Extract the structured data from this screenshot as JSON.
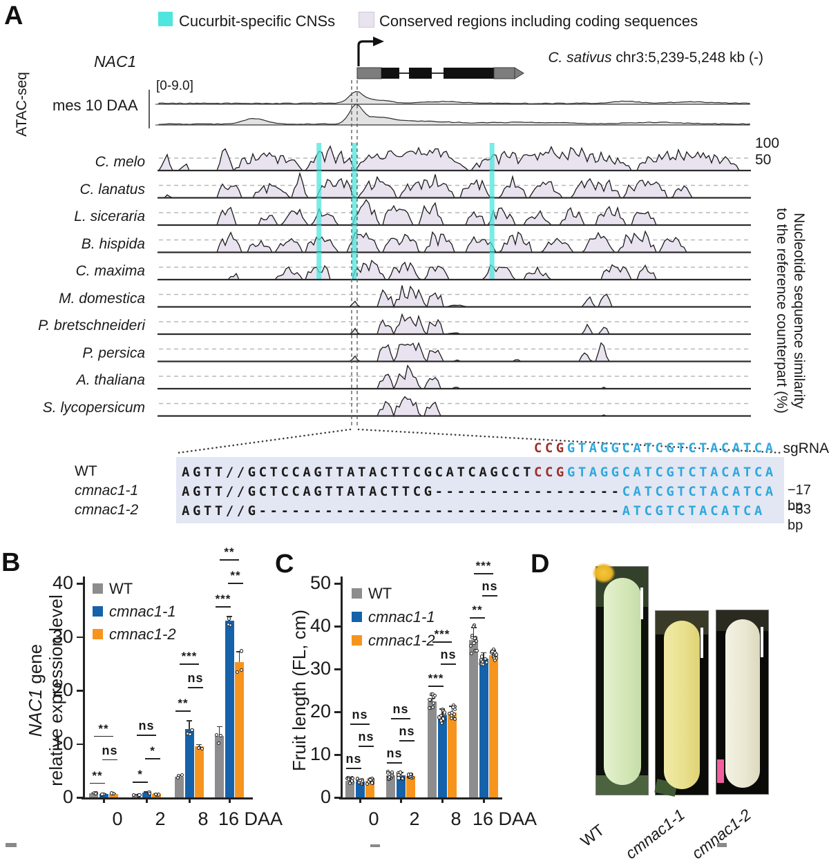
{
  "figure": {
    "panel_labels": {
      "a": "A",
      "b": "B",
      "c": "C",
      "d": "D"
    },
    "colors": {
      "cns_cyan": "#4ee6de",
      "conserved_lavender": "#e9e2ef",
      "align_bg": "#e3e7f3",
      "pam_red": "#9e2f2a",
      "guide_blue": "#2fa8dd",
      "bar_gray": "#8d8d8f",
      "bar_blue": "#1562aa",
      "bar_orange": "#f7941e"
    }
  },
  "panel_a": {
    "legend": [
      {
        "label": "Cucurbit-specific CNSs",
        "color": "#4ee6de"
      },
      {
        "label": "Conserved regions including coding sequences",
        "color": "#e9e2ef"
      }
    ],
    "gene_name": "NAC1",
    "locus_italic": "C. sativus",
    "locus_rest": " chr3:5,239-5,248 kb (-)",
    "atac_label": "ATAC-seq",
    "atac_sample": "mes 10 DAA",
    "atac_scale": "[0-9.0]",
    "similarity_ticks": [
      "100",
      "50"
    ],
    "similarity_axis_lines": [
      "Nucleotide sequence similarity",
      "to the reference counterpart (%)"
    ],
    "cns_positions": [
      0.271,
      0.331,
      0.564
    ],
    "tracks": [
      {
        "species": "C. melo",
        "cucurbit": true,
        "segments": [
          [
            0,
            0.02,
            0.65
          ],
          [
            0.035,
            0.05,
            0.3
          ],
          [
            0.1,
            0.125,
            0.85
          ],
          [
            0.13,
            0.24,
            0.8
          ],
          [
            0.25,
            0.33,
            0.9
          ],
          [
            0.335,
            0.52,
            0.97
          ],
          [
            0.53,
            0.8,
            0.93
          ],
          [
            0.81,
            0.98,
            0.85
          ]
        ]
      },
      {
        "species": "C. lanatus",
        "cucurbit": true,
        "segments": [
          [
            0.01,
            0.02,
            0.15
          ],
          [
            0.1,
            0.14,
            0.75
          ],
          [
            0.16,
            0.22,
            0.6
          ],
          [
            0.225,
            0.25,
            0.9
          ],
          [
            0.27,
            0.33,
            0.85
          ],
          [
            0.34,
            0.4,
            0.85
          ],
          [
            0.41,
            0.5,
            0.9
          ],
          [
            0.51,
            0.56,
            0.8
          ],
          [
            0.58,
            0.62,
            0.85
          ],
          [
            0.63,
            0.68,
            0.7
          ],
          [
            0.7,
            0.78,
            0.8
          ],
          [
            0.79,
            0.86,
            0.9
          ],
          [
            0.87,
            0.9,
            0.5
          ]
        ]
      },
      {
        "species": "L. siceraria",
        "cucurbit": true,
        "segments": [
          [
            0.1,
            0.13,
            0.75
          ],
          [
            0.17,
            0.2,
            0.5
          ],
          [
            0.21,
            0.25,
            0.7
          ],
          [
            0.26,
            0.3,
            0.65
          ],
          [
            0.33,
            0.37,
            0.95
          ],
          [
            0.38,
            0.43,
            0.85
          ],
          [
            0.44,
            0.48,
            0.9
          ],
          [
            0.52,
            0.55,
            0.6
          ],
          [
            0.56,
            0.6,
            0.75
          ],
          [
            0.62,
            0.66,
            0.6
          ],
          [
            0.68,
            0.72,
            0.65
          ],
          [
            0.74,
            0.79,
            0.7
          ],
          [
            0.8,
            0.84,
            0.6
          ]
        ]
      },
      {
        "species": "B. hispida",
        "cucurbit": true,
        "segments": [
          [
            0.1,
            0.14,
            0.7
          ],
          [
            0.15,
            0.19,
            0.45
          ],
          [
            0.2,
            0.24,
            0.65
          ],
          [
            0.25,
            0.3,
            0.75
          ],
          [
            0.32,
            0.37,
            0.9
          ],
          [
            0.38,
            0.44,
            0.8
          ],
          [
            0.45,
            0.5,
            0.85
          ],
          [
            0.52,
            0.57,
            0.75
          ],
          [
            0.58,
            0.63,
            0.8
          ],
          [
            0.65,
            0.7,
            0.6
          ],
          [
            0.72,
            0.77,
            0.75
          ],
          [
            0.78,
            0.84,
            0.85
          ],
          [
            0.85,
            0.89,
            0.7
          ]
        ]
      },
      {
        "species": "C. maxima",
        "cucurbit": true,
        "segments": [
          [
            0.12,
            0.135,
            0.3
          ],
          [
            0.2,
            0.24,
            0.5
          ],
          [
            0.25,
            0.29,
            0.65
          ],
          [
            0.33,
            0.38,
            0.9
          ],
          [
            0.39,
            0.44,
            0.8
          ],
          [
            0.45,
            0.49,
            0.75
          ],
          [
            0.55,
            0.6,
            0.7
          ],
          [
            0.62,
            0.66,
            0.5
          ],
          [
            0.75,
            0.8,
            0.8
          ],
          [
            0.81,
            0.84,
            0.6
          ]
        ]
      },
      {
        "species": "M. domestica",
        "cucurbit": false,
        "segments": [
          [
            0.327,
            0.337,
            0.3
          ],
          [
            0.372,
            0.395,
            0.72
          ],
          [
            0.4,
            0.45,
            0.92
          ],
          [
            0.455,
            0.48,
            0.68
          ],
          [
            0.49,
            0.52,
            0.1
          ],
          [
            0.72,
            0.735,
            0.55
          ],
          [
            0.745,
            0.765,
            0.68
          ]
        ]
      },
      {
        "species": "P. bretschneideri",
        "cucurbit": false,
        "segments": [
          [
            0.327,
            0.337,
            0.28
          ],
          [
            0.372,
            0.395,
            0.7
          ],
          [
            0.4,
            0.45,
            0.9
          ],
          [
            0.455,
            0.48,
            0.66
          ],
          [
            0.49,
            0.51,
            0.08
          ],
          [
            0.72,
            0.732,
            0.5
          ],
          [
            0.748,
            0.762,
            0.35
          ]
        ]
      },
      {
        "species": "P. persica",
        "cucurbit": false,
        "segments": [
          [
            0.327,
            0.337,
            0.3
          ],
          [
            0.372,
            0.395,
            0.72
          ],
          [
            0.4,
            0.45,
            0.92
          ],
          [
            0.455,
            0.48,
            0.7
          ],
          [
            0.5,
            0.51,
            0.08
          ],
          [
            0.6,
            0.61,
            0.1
          ],
          [
            0.715,
            0.73,
            0.55
          ],
          [
            0.74,
            0.76,
            0.72
          ]
        ]
      },
      {
        "species": "A. thaliana",
        "cucurbit": false,
        "segments": [
          [
            0.372,
            0.395,
            0.75
          ],
          [
            0.4,
            0.44,
            0.85
          ],
          [
            0.45,
            0.475,
            0.5
          ],
          [
            0.5,
            0.507,
            0.1
          ],
          [
            0.75,
            0.757,
            0.12
          ]
        ]
      },
      {
        "species": "S. lycopersicum",
        "cucurbit": false,
        "segments": [
          [
            0.372,
            0.395,
            0.7
          ],
          [
            0.4,
            0.44,
            0.85
          ],
          [
            0.45,
            0.475,
            0.65
          ],
          [
            0.75,
            0.756,
            0.1
          ]
        ]
      }
    ],
    "alignment": {
      "sgrna": {
        "pam": "CCG",
        "guide": "GTAGGCATCGTCTACATCA",
        "label": "sgRNA"
      },
      "rows": [
        {
          "name": "WT",
          "italic": false,
          "note": "",
          "segments": [
            {
              "t": "AGTT//GCTCCAGTTATACTTCGCATCAGCCT",
              "c": "base"
            },
            {
              "t": "CCG",
              "c": "pam"
            },
            {
              "t": "GTAGGCATCGTCTACATCA",
              "c": "guide"
            }
          ]
        },
        {
          "name": "cmnac1-1",
          "italic": true,
          "note": "−17 bp",
          "segments": [
            {
              "t": "AGTT//GCTCCAGTTATACTTCG",
              "c": "base"
            },
            {
              "t": "-----------------",
              "c": "base"
            },
            {
              "t": "CATCGTCTACATCA",
              "c": "guide"
            }
          ]
        },
        {
          "name": "cmnac1-2",
          "italic": true,
          "note": "−33 bp",
          "segments": [
            {
              "t": "AGTT//G",
              "c": "base"
            },
            {
              "t": "---------------------------------",
              "c": "base"
            },
            {
              "t": "ATCGTCTACATCA",
              "c": "guide"
            }
          ]
        }
      ]
    }
  },
  "chart_data": [
    {
      "id": "nac1-expression",
      "type": "bar",
      "ylabel_lines": [
        [
          {
            "t": "NAC1",
            "i": true
          },
          {
            "t": " gene",
            "i": false
          }
        ],
        [
          {
            "t": "relative expression level",
            "i": false
          }
        ]
      ],
      "ylim": [
        0,
        40
      ],
      "yticks": [
        0,
        10,
        20,
        30,
        40
      ],
      "categories": [
        "0",
        "2",
        "8",
        "16"
      ],
      "x_suffix": "DAA",
      "legend_position": "top-left",
      "grid": false,
      "series": [
        {
          "name": "WT",
          "italic": false,
          "color": "#8d8d8f",
          "values": [
            0.8,
            0.5,
            3.9,
            11.5
          ],
          "errors": [
            0.15,
            0.1,
            0.25,
            1.8
          ]
        },
        {
          "name": "cmnac1-1",
          "italic": true,
          "color": "#1562aa",
          "values": [
            0.6,
            0.9,
            12.8,
            33.0
          ],
          "errors": [
            0.15,
            0.2,
            1.6,
            0.9
          ]
        },
        {
          "name": "cmnac1-2",
          "italic": true,
          "color": "#f7941e",
          "values": [
            0.7,
            0.6,
            9.5,
            25.3
          ],
          "errors": [
            0.12,
            0.12,
            0.5,
            2.0
          ]
        }
      ],
      "significance": [
        [
          "**",
          "ns",
          "**"
        ],
        [
          "*",
          "*",
          "ns"
        ],
        [
          "**",
          "ns",
          "***"
        ],
        [
          "***",
          "**",
          "**"
        ]
      ],
      "points_per_bar": 3
    },
    {
      "id": "fruit-length",
      "type": "bar",
      "ylabel_lines": [
        [
          {
            "t": "Fruit length (FL, cm)",
            "i": false
          }
        ]
      ],
      "ylim": [
        0,
        50
      ],
      "yticks": [
        0,
        10,
        20,
        30,
        40,
        50
      ],
      "categories": [
        "0",
        "2",
        "8",
        "16"
      ],
      "x_suffix": "DAA",
      "legend_position": "top-left",
      "grid": false,
      "series": [
        {
          "name": "WT",
          "italic": false,
          "color": "#8d8d8f",
          "values": [
            3.9,
            5.2,
            22.4,
            36.8
          ],
          "errors": [
            0.7,
            0.8,
            1.5,
            3.0
          ]
        },
        {
          "name": "cmnac1-1",
          "italic": true,
          "color": "#1562aa",
          "values": [
            3.7,
            5.1,
            19.2,
            32.4
          ],
          "errors": [
            0.6,
            0.8,
            1.6,
            1.5
          ]
        },
        {
          "name": "cmnac1-2",
          "italic": true,
          "color": "#f7941e",
          "values": [
            3.8,
            5.0,
            19.9,
            33.3
          ],
          "errors": [
            0.6,
            0.7,
            1.5,
            1.2
          ]
        }
      ],
      "significance": [
        [
          "ns",
          "ns",
          "ns"
        ],
        [
          "ns",
          "ns",
          "ns"
        ],
        [
          "***",
          "ns",
          "***"
        ],
        [
          "**",
          "ns",
          "***"
        ]
      ],
      "points_per_bar": 12
    }
  ],
  "panel_d": {
    "items": [
      {
        "label": "WT",
        "italic": false
      },
      {
        "label": "cmnac1-1",
        "italic": true
      },
      {
        "label": "cmnac1-2",
        "italic": true
      }
    ]
  }
}
